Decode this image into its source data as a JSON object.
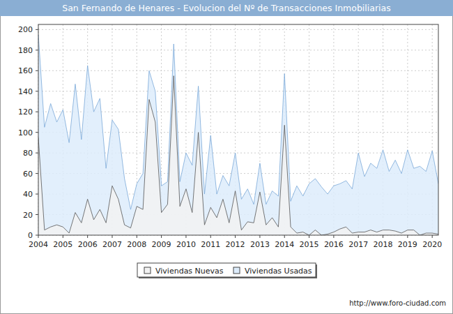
{
  "chart_data": {
    "type": "area",
    "title": "San Fernando de Henares - Evolucion del Nº de Transacciones Inmobiliarias",
    "x": [
      2004,
      2004.25,
      2004.5,
      2004.75,
      2005,
      2005.25,
      2005.5,
      2005.75,
      2006,
      2006.25,
      2006.5,
      2006.75,
      2007,
      2007.25,
      2007.5,
      2007.75,
      2008,
      2008.25,
      2008.5,
      2008.75,
      2009,
      2009.25,
      2009.5,
      2009.75,
      2010,
      2010.25,
      2010.5,
      2010.75,
      2011,
      2011.25,
      2011.5,
      2011.75,
      2012,
      2012.25,
      2012.5,
      2012.75,
      2013,
      2013.25,
      2013.5,
      2013.75,
      2014,
      2014.25,
      2014.5,
      2014.75,
      2015,
      2015.25,
      2015.5,
      2015.75,
      2016,
      2016.25,
      2016.5,
      2016.75,
      2017,
      2017.25,
      2017.5,
      2017.75,
      2018,
      2018.25,
      2018.5,
      2018.75,
      2019,
      2019.25,
      2019.5,
      2019.75,
      2020,
      2020.25
    ],
    "series": [
      {
        "name": "Viviendas Nuevas",
        "color": "#f2f2f2",
        "values": [
          95,
          5,
          8,
          10,
          8,
          2,
          22,
          12,
          35,
          15,
          25,
          12,
          48,
          35,
          10,
          7,
          28,
          25,
          132,
          110,
          22,
          30,
          155,
          28,
          45,
          22,
          100,
          10,
          27,
          17,
          35,
          12,
          43,
          5,
          13,
          12,
          42,
          10,
          17,
          8,
          107,
          8,
          2,
          3,
          0,
          5,
          0,
          1,
          3,
          6,
          8,
          2,
          3,
          3,
          5,
          3,
          5,
          5,
          4,
          2,
          5,
          5,
          0,
          2,
          2,
          1
        ]
      },
      {
        "name": "Viviendas Usadas",
        "color": "#ddecfb",
        "values": [
          195,
          105,
          128,
          110,
          122,
          90,
          147,
          93,
          165,
          120,
          133,
          65,
          112,
          103,
          55,
          25,
          50,
          60,
          160,
          140,
          48,
          52,
          186,
          52,
          80,
          68,
          145,
          40,
          97,
          40,
          58,
          48,
          80,
          35,
          45,
          30,
          70,
          30,
          43,
          38,
          157,
          33,
          48,
          38,
          50,
          55,
          47,
          40,
          48,
          50,
          53,
          45,
          80,
          57,
          70,
          65,
          83,
          62,
          73,
          60,
          83,
          65,
          67,
          62,
          82,
          50
        ]
      }
    ],
    "xlim": [
      2004,
      2020.25
    ],
    "xticks": [
      2004,
      2005,
      2006,
      2007,
      2008,
      2009,
      2010,
      2011,
      2012,
      2013,
      2014,
      2015,
      2016,
      2017,
      2018,
      2019,
      2020
    ],
    "ylim": [
      0,
      205
    ],
    "yticks": [
      0,
      20,
      40,
      60,
      80,
      100,
      120,
      140,
      160,
      180,
      200
    ],
    "grid": true,
    "legend": "bottom",
    "annotations": [
      "http://www.foro-ciudad.com"
    ]
  }
}
